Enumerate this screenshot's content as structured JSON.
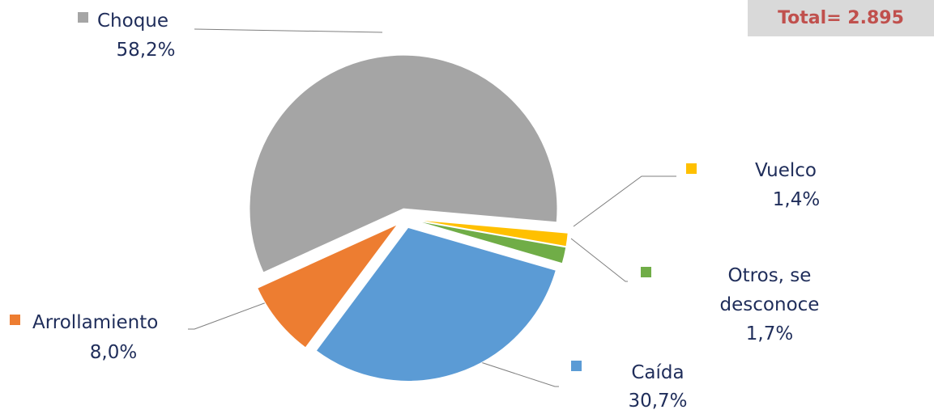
{
  "chart_data": {
    "type": "pie",
    "annotation": "Total= 2.895",
    "categories": [
      "Choque",
      "Vuelco",
      "Otros, se desconoce",
      "Caída",
      "Arrollamiento"
    ],
    "values": [
      58.2,
      1.4,
      1.7,
      30.7,
      8.0
    ],
    "value_labels": [
      "58,2%",
      "1,4%",
      "1,7%",
      "30,7%",
      "8,0%"
    ],
    "colors": [
      "#a5a5a5",
      "#ffc000",
      "#70ad47",
      "#5b9bd5",
      "#ed7d31"
    ]
  }
}
